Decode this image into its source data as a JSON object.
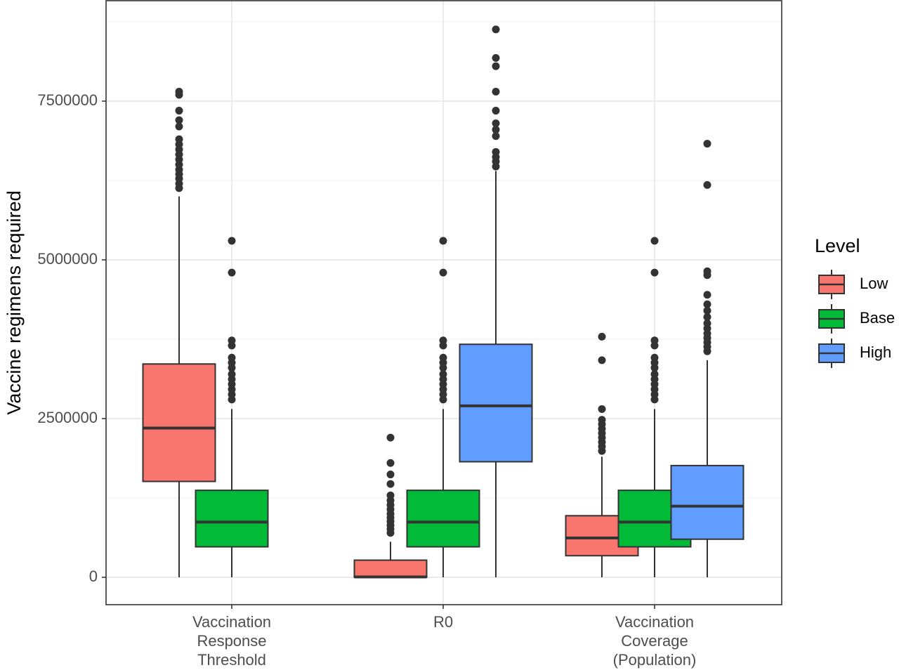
{
  "chart_data": {
    "type": "boxplot",
    "ylabel": "Vaccine regimens required",
    "xlabel": "",
    "ylim": [
      -300000,
      8800000
    ],
    "yticks": [
      {
        "value": 0,
        "label": "0"
      },
      {
        "value": 2500000,
        "label": "2500000"
      },
      {
        "value": 5000000,
        "label": "5000000"
      },
      {
        "value": 7500000,
        "label": "7500000"
      }
    ],
    "grid": true,
    "categories": [
      {
        "lines": [
          "Vaccination",
          "Response",
          "Threshold"
        ]
      },
      {
        "lines": [
          "R0"
        ]
      },
      {
        "lines": [
          "Vaccination",
          "Coverage",
          "(Population)"
        ]
      }
    ],
    "legend": {
      "title": "Level",
      "position": "right",
      "items": [
        {
          "label": "Low",
          "color": "#F8766D"
        },
        {
          "label": "Base",
          "color": "#00BA38"
        },
        {
          "label": "High",
          "color": "#619CFF"
        }
      ]
    },
    "boxes": [
      {
        "category": 0,
        "level": "Low",
        "whisker_low": 0,
        "q1": 1510000,
        "median": 2350000,
        "q3": 3360000,
        "whisker_high": 6000000,
        "outliers": [
          6130000,
          6200000,
          6280000,
          6350000,
          6420000,
          6500000,
          6580000,
          6660000,
          6740000,
          6820000,
          6900000,
          7100000,
          7200000,
          7350000,
          7600000,
          7650000
        ]
      },
      {
        "category": 0,
        "level": "Base",
        "whisker_low": 0,
        "q1": 480000,
        "median": 870000,
        "q3": 1370000,
        "whisker_high": 2650000,
        "outliers": [
          2800000,
          2880000,
          2960000,
          3040000,
          3120000,
          3200000,
          3300000,
          3380000,
          3460000,
          3650000,
          3730000,
          4800000,
          5300000
        ]
      },
      {
        "category": 1,
        "level": "Low",
        "whisker_low": 0,
        "q1": 0,
        "median": 5000,
        "q3": 270000,
        "whisker_high": 560000,
        "outliers": [
          700000,
          760000,
          820000,
          880000,
          940000,
          1000000,
          1070000,
          1140000,
          1210000,
          1290000,
          1470000,
          1620000,
          1800000,
          2200000
        ]
      },
      {
        "category": 1,
        "level": "Base",
        "whisker_low": 0,
        "q1": 480000,
        "median": 870000,
        "q3": 1370000,
        "whisker_high": 2650000,
        "outliers": [
          2800000,
          2880000,
          2960000,
          3040000,
          3120000,
          3200000,
          3300000,
          3380000,
          3460000,
          3650000,
          3730000,
          4800000,
          5300000
        ]
      },
      {
        "category": 1,
        "level": "High",
        "whisker_low": 0,
        "q1": 1820000,
        "median": 2700000,
        "q3": 3670000,
        "whisker_high": 6400000,
        "outliers": [
          6470000,
          6550000,
          6620000,
          6700000,
          6950000,
          7050000,
          7150000,
          7350000,
          7650000,
          8050000,
          8180000,
          8630000
        ]
      },
      {
        "category": 2,
        "level": "Low",
        "whisker_low": 0,
        "q1": 340000,
        "median": 620000,
        "q3": 970000,
        "whisker_high": 1900000,
        "outliers": [
          1990000,
          2060000,
          2130000,
          2200000,
          2270000,
          2340000,
          2410000,
          2480000,
          2650000,
          3420000,
          3790000
        ]
      },
      {
        "category": 2,
        "level": "Base",
        "whisker_low": 0,
        "q1": 480000,
        "median": 870000,
        "q3": 1370000,
        "whisker_high": 2650000,
        "outliers": [
          2800000,
          2880000,
          2960000,
          3040000,
          3120000,
          3200000,
          3300000,
          3380000,
          3460000,
          3650000,
          3730000,
          4800000,
          5300000
        ]
      },
      {
        "category": 2,
        "level": "High",
        "whisker_low": 0,
        "q1": 600000,
        "median": 1120000,
        "q3": 1760000,
        "whisker_high": 3420000,
        "outliers": [
          3560000,
          3630000,
          3700000,
          3770000,
          3840000,
          3920000,
          4000000,
          4100000,
          4200000,
          4300000,
          4450000,
          4760000,
          4820000,
          6180000,
          6830000
        ]
      }
    ]
  }
}
